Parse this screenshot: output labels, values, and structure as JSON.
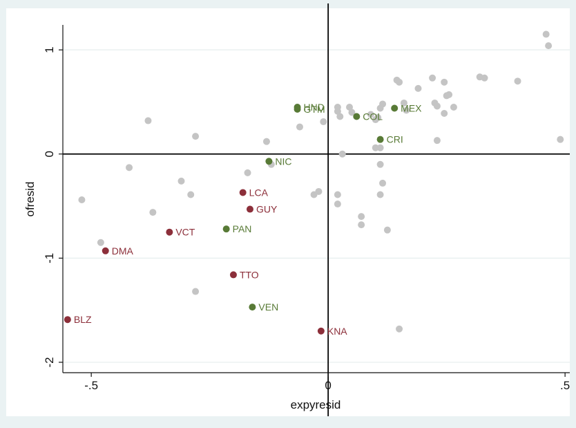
{
  "chart_data": {
    "type": "scatter",
    "xlabel": "expyresid",
    "ylabel": "ofresid",
    "xlim": [
      -0.56,
      0.51
    ],
    "ylim": [
      -2.1,
      1.24
    ],
    "x_ticks": [
      {
        "value": -0.5,
        "label": "-.5"
      },
      {
        "value": 0,
        "label": "0"
      },
      {
        "value": 0.5,
        "label": ".5"
      }
    ],
    "y_ticks": [
      {
        "value": -2,
        "label": "-2"
      },
      {
        "value": -1,
        "label": "-1"
      },
      {
        "value": 0,
        "label": "0"
      },
      {
        "value": 1,
        "label": "1"
      }
    ],
    "grid": true,
    "reference_lines": {
      "x": 0,
      "y": 0
    },
    "colors": {
      "background": "#eaf2f3",
      "plot_bg": "#ffffff",
      "grid": "#e6eeee",
      "grey_points": "#c4c4c4",
      "green_points": "#587a36",
      "red_points": "#8c2f3a"
    },
    "series": [
      {
        "group": "grey",
        "points": [
          [
            -0.52,
            -0.44
          ],
          [
            -0.48,
            -0.85
          ],
          [
            -0.42,
            -0.13
          ],
          [
            -0.38,
            0.32
          ],
          [
            -0.37,
            -0.56
          ],
          [
            -0.31,
            -0.26
          ],
          [
            -0.29,
            -0.39
          ],
          [
            -0.28,
            0.17
          ],
          [
            -0.28,
            -1.32
          ],
          [
            -0.17,
            -0.18
          ],
          [
            -0.13,
            0.12
          ],
          [
            -0.12,
            -0.1
          ],
          [
            -0.06,
            0.26
          ],
          [
            -0.03,
            -0.39
          ],
          [
            -0.02,
            -0.36
          ],
          [
            -0.01,
            0.31
          ],
          [
            0.02,
            0.45
          ],
          [
            0.02,
            0.41
          ],
          [
            0.02,
            -0.39
          ],
          [
            0.02,
            -0.48
          ],
          [
            0.025,
            0.36
          ],
          [
            0.03,
            0.0
          ],
          [
            0.045,
            0.45
          ],
          [
            0.05,
            0.4
          ],
          [
            0.07,
            -0.6
          ],
          [
            0.07,
            -0.68
          ],
          [
            0.09,
            0.38
          ],
          [
            0.1,
            0.06
          ],
          [
            0.1,
            0.33
          ],
          [
            0.105,
            0.35
          ],
          [
            0.11,
            0.44
          ],
          [
            0.11,
            0.06
          ],
          [
            0.11,
            -0.1
          ],
          [
            0.11,
            -0.39
          ],
          [
            0.115,
            -0.28
          ],
          [
            0.115,
            0.48
          ],
          [
            0.125,
            -0.73
          ],
          [
            0.145,
            0.71
          ],
          [
            0.15,
            0.69
          ],
          [
            0.15,
            -1.68
          ],
          [
            0.16,
            0.49
          ],
          [
            0.165,
            0.42
          ],
          [
            0.19,
            0.63
          ],
          [
            0.22,
            0.73
          ],
          [
            0.225,
            0.49
          ],
          [
            0.23,
            0.46
          ],
          [
            0.23,
            0.13
          ],
          [
            0.245,
            0.69
          ],
          [
            0.245,
            0.39
          ],
          [
            0.25,
            0.56
          ],
          [
            0.255,
            0.57
          ],
          [
            0.265,
            0.45
          ],
          [
            0.32,
            0.74
          ],
          [
            0.33,
            0.73
          ],
          [
            0.4,
            0.7
          ],
          [
            0.46,
            1.15
          ],
          [
            0.465,
            1.04
          ],
          [
            0.49,
            0.14
          ]
        ]
      },
      {
        "group": "green",
        "points": [
          {
            "x": -0.065,
            "y": 0.45,
            "label": "HND"
          },
          {
            "x": -0.065,
            "y": 0.43,
            "label": "GTM"
          },
          {
            "x": 0.06,
            "y": 0.36,
            "label": "COL"
          },
          {
            "x": 0.14,
            "y": 0.44,
            "label": "MEX"
          },
          {
            "x": 0.11,
            "y": 0.14,
            "label": "CRI"
          },
          {
            "x": -0.125,
            "y": -0.07,
            "label": "NIC"
          },
          {
            "x": -0.215,
            "y": -0.72,
            "label": "PAN"
          },
          {
            "x": -0.16,
            "y": -1.47,
            "label": "VEN"
          }
        ]
      },
      {
        "group": "red",
        "points": [
          {
            "x": -0.18,
            "y": -0.37,
            "label": "LCA"
          },
          {
            "x": -0.165,
            "y": -0.53,
            "label": "GUY"
          },
          {
            "x": -0.335,
            "y": -0.75,
            "label": "VCT"
          },
          {
            "x": -0.47,
            "y": -0.93,
            "label": "DMA"
          },
          {
            "x": -0.2,
            "y": -1.16,
            "label": "TTO"
          },
          {
            "x": -0.55,
            "y": -1.59,
            "label": "BLZ"
          },
          {
            "x": -0.015,
            "y": -1.7,
            "label": "KNA"
          }
        ]
      }
    ]
  }
}
